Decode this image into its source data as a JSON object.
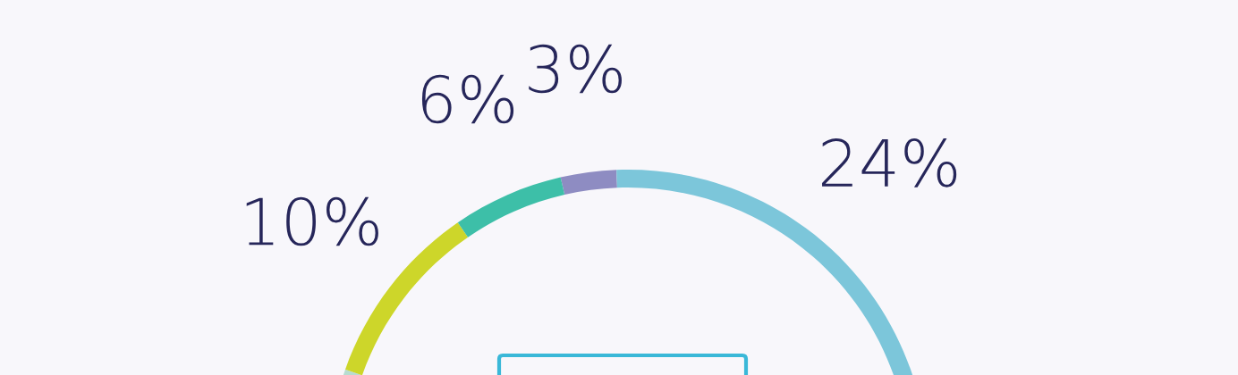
{
  "chart_data": {
    "type": "donut",
    "categories": [
      null,
      null,
      null,
      null,
      null
    ],
    "values": [
      3,
      24,
      57,
      10,
      6
    ],
    "colors": [
      "#8e8cc2",
      "#7cc6da",
      "#b8dcd0",
      "#cdd62a",
      "#3dbfa8"
    ],
    "value_labels": [
      "3%",
      "24%",
      null,
      "10%",
      "6%"
    ]
  }
}
